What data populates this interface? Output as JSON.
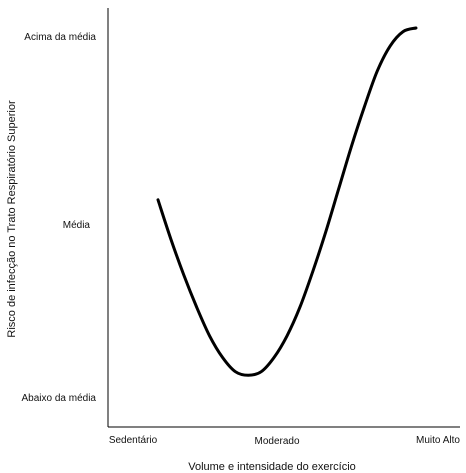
{
  "chart_data": {
    "type": "line",
    "xlabel": "Volume e intensidade do exercício",
    "ylabel": "Risco de infecção no Trato Respiratório Superior",
    "x_ticks": [
      "Sedentário",
      "Moderado",
      "Muito Alto"
    ],
    "y_ticks": [
      "Abaixo da média",
      "Média",
      "Acima da média"
    ],
    "xlim": [
      0,
      1
    ],
    "ylim": [
      0,
      1
    ],
    "grid": false,
    "series": [
      {
        "x": [
          0.0,
          0.05,
          0.1,
          0.15,
          0.2,
          0.25,
          0.3,
          0.35,
          0.4,
          0.45,
          0.5,
          0.55,
          0.6,
          0.65,
          0.7,
          0.75,
          0.8,
          0.85,
          0.9,
          0.95,
          1.0
        ],
        "y": [
          0.52,
          0.41,
          0.31,
          0.22,
          0.14,
          0.08,
          0.04,
          0.03,
          0.04,
          0.08,
          0.14,
          0.22,
          0.32,
          0.43,
          0.55,
          0.67,
          0.78,
          0.88,
          0.95,
          0.99,
          1.0
        ]
      }
    ],
    "line_color": "#000000"
  }
}
